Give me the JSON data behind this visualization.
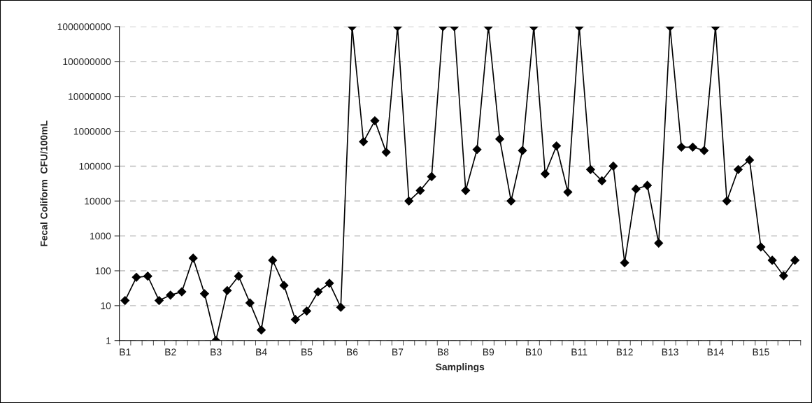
{
  "chart_data": {
    "type": "line",
    "xlabel": "Samplings",
    "ylabel": "Fecal Coliform  CFU/100mL",
    "categories": [
      "B1",
      null,
      null,
      null,
      "B2",
      null,
      null,
      null,
      "B3",
      null,
      null,
      null,
      "B4",
      null,
      null,
      null,
      "B5",
      null,
      null,
      null,
      "B6",
      null,
      null,
      null,
      "B7",
      null,
      null,
      null,
      "B8",
      null,
      null,
      null,
      "B9",
      null,
      null,
      null,
      "B10",
      null,
      null,
      null,
      "B11",
      null,
      null,
      null,
      "B12",
      null,
      null,
      null,
      "B13",
      null,
      null,
      null,
      "B14",
      null,
      null,
      null,
      "B15",
      null,
      null,
      null
    ],
    "series": [
      {
        "color": "#000000",
        "values": [
          14,
          65,
          70,
          14,
          20,
          25,
          230,
          22,
          1,
          27,
          70,
          12,
          2,
          200,
          38,
          4,
          7,
          25,
          44,
          9,
          1000000000,
          500000,
          2000000,
          250000,
          1000000000,
          10000,
          20000,
          50000,
          1000000000,
          1000000000,
          20000,
          300000,
          1000000000,
          600000,
          10000,
          280000,
          1000000000,
          60000,
          380000,
          18000,
          1000000000,
          80000,
          38000,
          100000,
          170,
          22000,
          28000,
          620,
          1000000000,
          350000,
          350000,
          280000,
          1000000000,
          10000,
          80000,
          150000,
          480,
          200,
          72,
          200
        ]
      }
    ],
    "log": "y",
    "ylim": [
      1,
      1000000000
    ],
    "yticks": [
      1,
      10,
      100,
      1000,
      10000,
      100000,
      1000000,
      10000000,
      100000000,
      1000000000
    ],
    "grid": "y",
    "marker": "diamond",
    "line_style": "solid",
    "legend": false
  }
}
